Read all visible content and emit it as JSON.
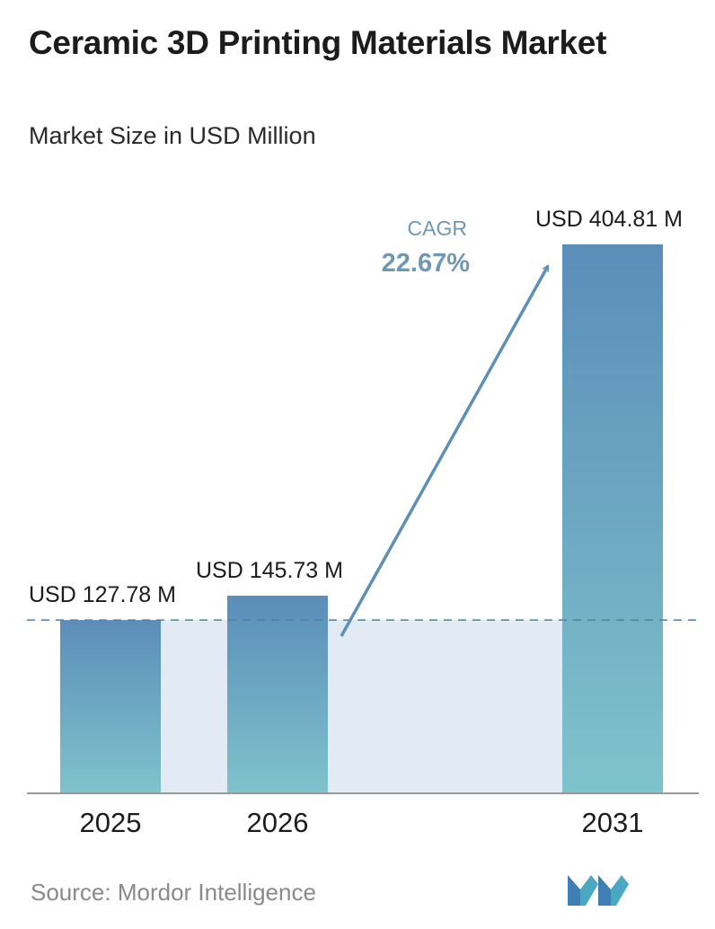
{
  "title": "Ceramic 3D Printing Materials Market",
  "subtitle": "Market Size in USD Million",
  "source": "Source: Mordor Intelligence",
  "logo_icon": "mordor-intelligence-logo",
  "colors": {
    "bar_top": "#5b8db9",
    "bar_bottom": "#7fc3cc",
    "band": "#e2eaf3",
    "reference_line": "#4f7fa3",
    "arrow": "#5e8fb6",
    "cagr_text": "#6f98b4",
    "axis": "#999999"
  },
  "chart_data": {
    "type": "bar",
    "title": "Ceramic 3D Printing Materials Market",
    "subtitle": "Market Size in USD Million",
    "categories": [
      "2025",
      "2026",
      "2031"
    ],
    "values": [
      127.78,
      145.73,
      404.81
    ],
    "data_labels": [
      "USD 127.78 M",
      "USD 145.73 M",
      "USD 404.81 M"
    ],
    "unit": "USD Million",
    "ylim": [
      0,
      404.81
    ],
    "grid": false,
    "legend": "none",
    "annotations": {
      "cagr_label": "CAGR",
      "cagr_value": "22.67%"
    }
  }
}
